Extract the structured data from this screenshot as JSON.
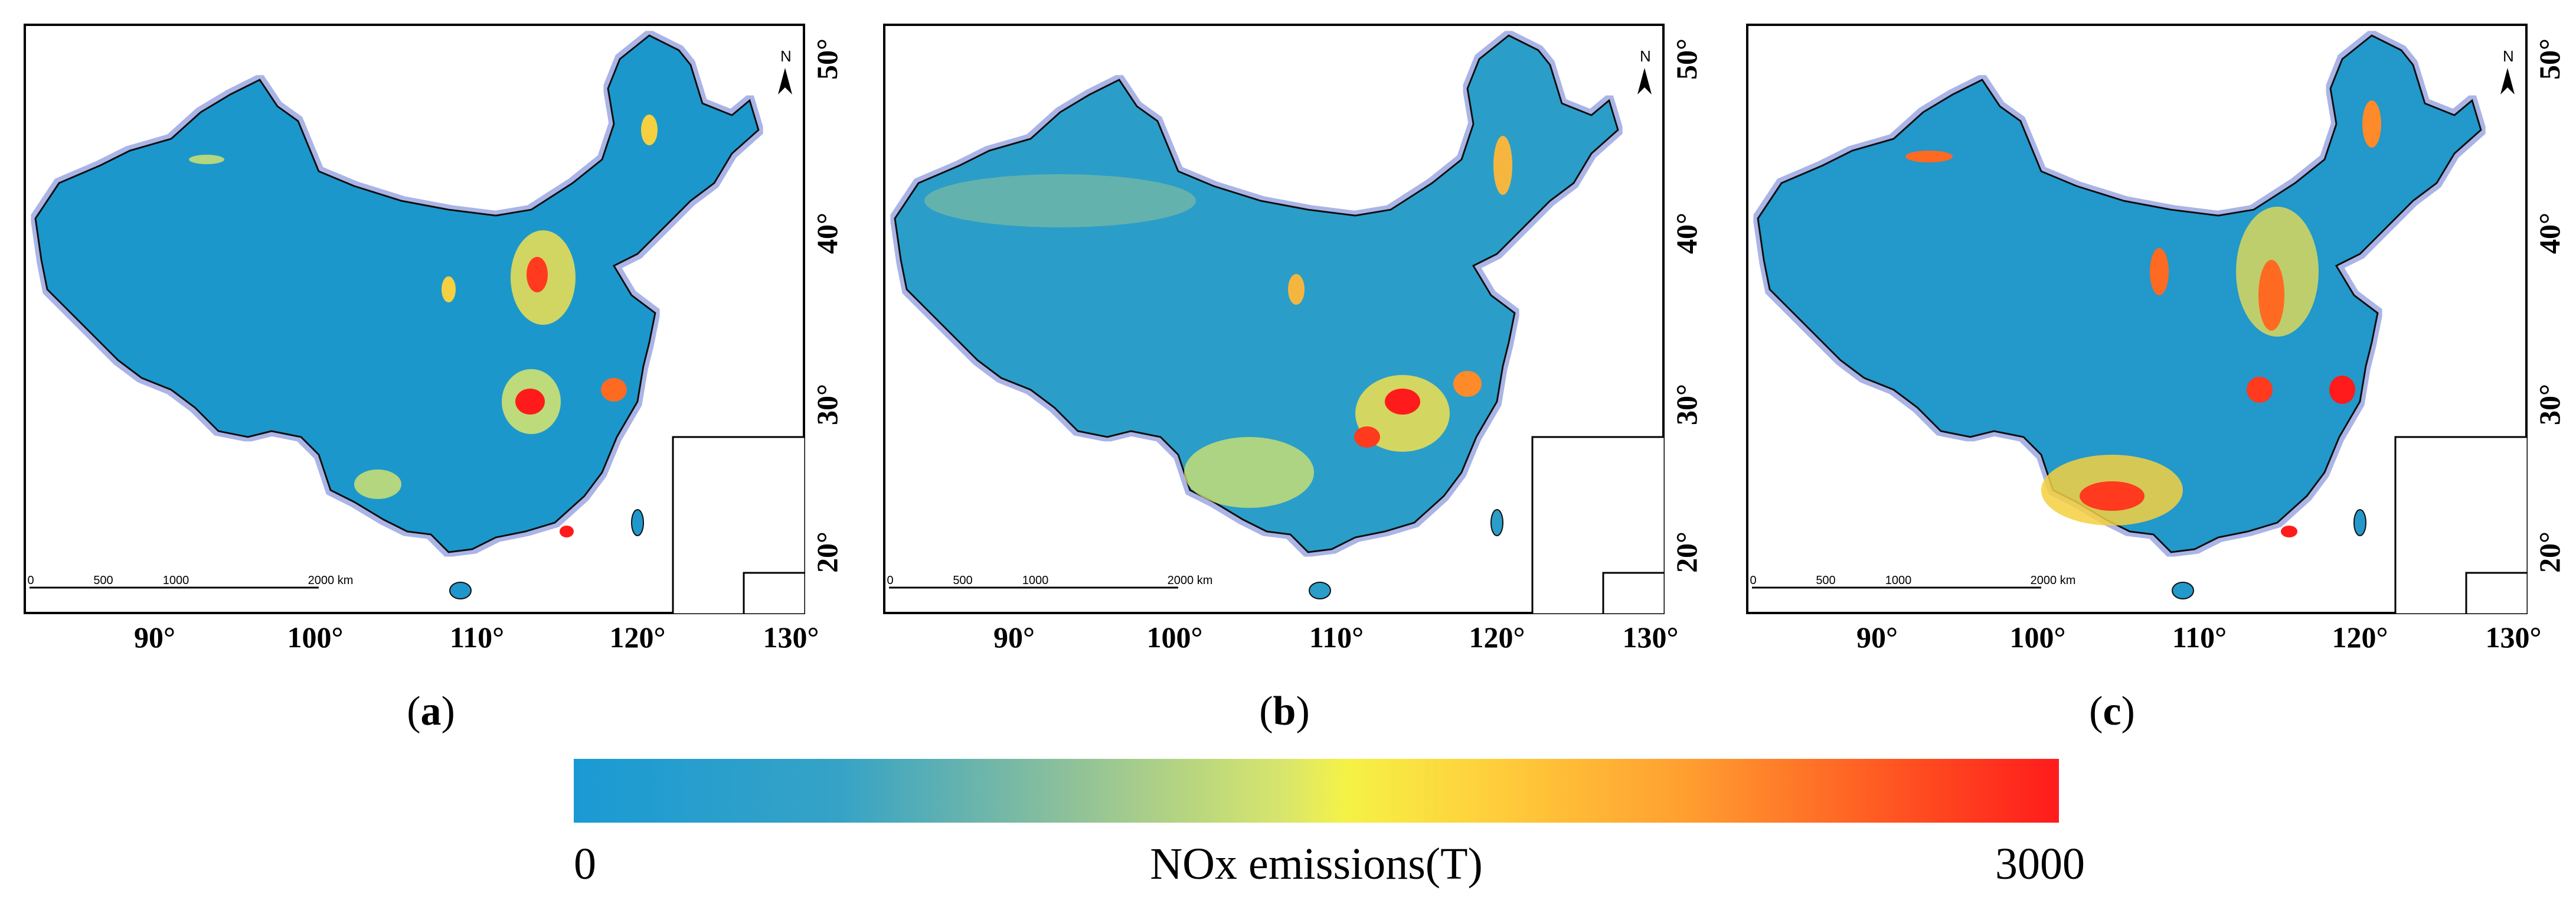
{
  "panels": [
    {
      "id": "a",
      "caption_open": "(",
      "caption_letter": "a",
      "caption_close": ")"
    },
    {
      "id": "b",
      "caption_open": "(",
      "caption_letter": "b",
      "caption_close": ")"
    },
    {
      "id": "c",
      "caption_open": "(",
      "caption_letter": "c",
      "caption_close": ")"
    }
  ],
  "axes": {
    "longitude_labels": [
      "90°",
      "100°",
      "110°",
      "120°",
      "130°"
    ],
    "latitude_labels": [
      "20°",
      "30°",
      "40°",
      "50°"
    ]
  },
  "north_arrow": {
    "label": "N"
  },
  "scale_bar": {
    "labels": [
      "0",
      "500",
      "1000",
      "2000 km"
    ]
  },
  "colorbar": {
    "min_label": "0",
    "max_label": "3000",
    "title": "NOx emissions(T)",
    "colors": [
      "#1a9ad4",
      "#8cc09b",
      "#f5f246",
      "#ff9e30",
      "#ff1b1b"
    ]
  }
}
